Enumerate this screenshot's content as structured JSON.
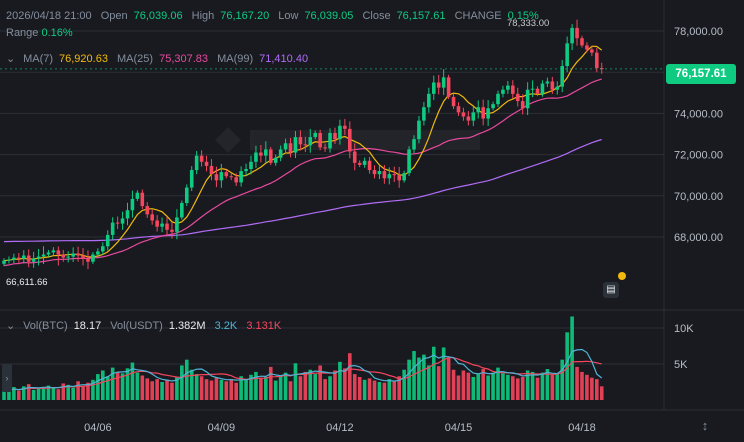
{
  "header": {
    "date": "2026/04/18 21:00",
    "open_label": "Open",
    "open": "76,039.06",
    "high_label": "High",
    "high": "76,167.20",
    "low_label": "Low",
    "low": "76,039.05",
    "close_label": "Close",
    "close": "76,157.61",
    "change_label": "CHANGE",
    "change": "0.15%",
    "range_label": "Range",
    "range": "0.16%"
  },
  "ma": {
    "ma7_label": "MA(7)",
    "ma7": "76,920.63",
    "ma25_label": "MA(25)",
    "ma25": "75,307.83",
    "ma99_label": "MA(99)",
    "ma99": "71,410.40"
  },
  "volume": {
    "btc_label": "Vol(BTC)",
    "btc": "18.17",
    "usdt_label": "Vol(USDT)",
    "usdt": "1.382M",
    "ma1": "3.2K",
    "ma2": "3.131K"
  },
  "price_tag": "76,157.61",
  "high_marker": "78,333.00",
  "low_marker": "66,611.66",
  "colors": {
    "up": "#0ecb81",
    "down": "#f6465d",
    "ma7": "#f0b90b",
    "ma25": "#e84a9e",
    "ma99": "#b06cf5",
    "vol_ma1": "#4fb5d6",
    "vol_ma2": "#f6465d"
  },
  "chart_data": {
    "type": "candlestick",
    "price_axis": {
      "ticks": [
        "78,000.00",
        "76,000.00",
        "74,000.00",
        "72,000.00",
        "70,000.00",
        "68,000.00"
      ],
      "values": [
        78000,
        76000,
        74000,
        72000,
        70000,
        68000
      ]
    },
    "volume_axis": {
      "ticks": [
        "10K",
        "5K"
      ],
      "values": [
        10000,
        5000
      ]
    },
    "x_ticks": [
      "04/06",
      "04/09",
      "04/12",
      "04/15",
      "04/18"
    ],
    "close": [
      66850,
      66900,
      67000,
      66950,
      67100,
      66800,
      66950,
      67050,
      67150,
      67250,
      67350,
      67150,
      67000,
      67050,
      67200,
      67100,
      66950,
      66800,
      67150,
      67300,
      67550,
      68100,
      68700,
      68650,
      68900,
      69300,
      69850,
      70150,
      69500,
      69100,
      68800,
      68500,
      68650,
      68350,
      68250,
      68950,
      69650,
      70400,
      71250,
      71950,
      71650,
      71450,
      71050,
      70750,
      71150,
      70950,
      70900,
      70650,
      71200,
      71300,
      71650,
      72100,
      71950,
      72250,
      71600,
      71850,
      72250,
      72550,
      72100,
      72850,
      72500,
      72450,
      72850,
      73050,
      72350,
      72300,
      73050,
      72750,
      73400,
      73250,
      72150,
      71600,
      71500,
      71700,
      71250,
      71050,
      71200,
      70850,
      71050,
      71000,
      70750,
      71100,
      72250,
      72750,
      73650,
      74300,
      74950,
      75500,
      75250,
      75750,
      74800,
      74350,
      74050,
      73850,
      73650,
      74050,
      74300,
      73750,
      74250,
      74450,
      74950,
      75150,
      75350,
      74950,
      74600,
      74250,
      75150,
      75200,
      74950,
      75450,
      75550,
      75150,
      75300,
      76300,
      77400,
      78150,
      77650,
      77300,
      77100,
      76950,
      76200,
      76160
    ],
    "volume": [
      1200,
      1500,
      1800,
      1300,
      1900,
      2200,
      1400,
      1700,
      1600,
      2000,
      1800,
      1500,
      2300,
      2100,
      1700,
      2600,
      1900,
      2400,
      2800,
      3600,
      4100,
      3300,
      4500,
      3900,
      3700,
      4400,
      5200,
      3800,
      3400,
      3000,
      2600,
      2900,
      2500,
      2800,
      2400,
      3200,
      4800,
      5600,
      4200,
      3600,
      3300,
      2900,
      2700,
      3100,
      2800,
      2600,
      2900,
      2400,
      3300,
      2800,
      3500,
      3900,
      3000,
      3200,
      4600,
      2700,
      3400,
      3800,
      2600,
      5100,
      3300,
      3900,
      4200,
      3600,
      4800,
      2900,
      3300,
      4100,
      5300,
      4400,
      6500,
      3600,
      3200,
      2800,
      3000,
      2700,
      2500,
      2400,
      2900,
      2600,
      3300,
      4200,
      5600,
      6800,
      5900,
      6300,
      4800,
      7400,
      4700,
      7300,
      5800,
      4200,
      3400,
      4100,
      3800,
      3200,
      3600,
      4300,
      3400,
      3800,
      4500,
      3700,
      3500,
      3300,
      3000,
      3200,
      4100,
      3900,
      3100,
      3800,
      4300,
      3500,
      3600,
      5600,
      9400,
      11600,
      4600,
      3900,
      3500,
      3100,
      2900,
      1900
    ],
    "ma7": [],
    "ma25": [],
    "ma99": []
  }
}
